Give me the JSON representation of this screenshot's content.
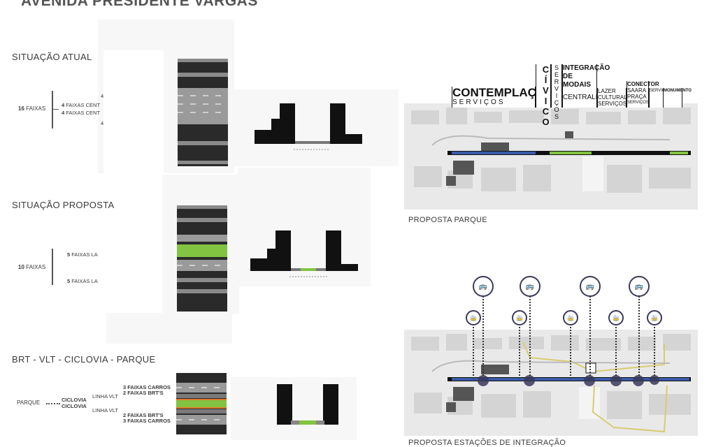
{
  "title": "AVENIDA PRESIDENTE VARGAS",
  "sections": {
    "atual": {
      "label": "SITUAÇÃO ATUAL",
      "total_num": "16",
      "total_word": "FAIXAS",
      "lane_top": "4",
      "lane_c1_num": "4",
      "lane_c1_text": "FAIXAS CENT",
      "lane_c2_num": "4",
      "lane_c2_text": "FAIXAS CENT",
      "lane_bottom": "4"
    },
    "proposta": {
      "label": "SITUAÇÃO PROPOSTA",
      "total_num": "10",
      "total_word": "FAIXAS",
      "lane_top_num": "5",
      "lane_top_text": "FAIXAS LA",
      "lane_bottom_num": "5",
      "lane_bottom_text": "FAIXAS LA"
    },
    "brt": {
      "label": "BRT - VLT - CICLOVIA - PARQUE",
      "parque": "PARQUE",
      "ciclovia1": "CICLOVIA",
      "ciclovia2": "CICLOVIA",
      "linha_vlt1": "LINHA VLT",
      "linha_vlt2": "LINHA VLT",
      "top1_num": "3",
      "top1_text": "FAIXAS CARROS",
      "top2_num": "2",
      "top2_text": "FAIXAS BRT'S",
      "bot1_num": "2",
      "bot1_text": "FAIXAS BRT'S",
      "bot2_num": "3",
      "bot2_text": "FAIXAS CARROS"
    }
  },
  "map_parque": {
    "caption": "PROPOSTA PARQUE",
    "signs": {
      "contemplacao": "CONTEMPLAÇÃO",
      "servicos1": "SERVIÇOS",
      "civico": "CÍVICO",
      "servicos2": "SERVIÇOS",
      "integracao1": "INTEGRAÇÃO",
      "integracao2": "DE MODAIS",
      "centralidade": "CENTRALIDADE",
      "lazer": "LAZER",
      "cultural": "CULTURAL",
      "servicos3": "SERVIÇOS",
      "conector": "CONECTOR",
      "saara": "SAARA",
      "praca": "PRAÇA",
      "servicos4": "SERVIÇOS",
      "servicos5": "SERVIÇOS",
      "monumento": "MONUMENTO"
    }
  },
  "map_estacoes": {
    "caption": "PROPOSTA ESTAÇÕES DE INTEGRAÇÃO"
  },
  "colors": {
    "road": "#2a2a2a",
    "lane": "#8a8a8a",
    "green": "#82c341",
    "orange": "#e0782a",
    "blue": "#3a5aa8",
    "station": "#3a3a5a"
  },
  "icons": [
    "bus-icon",
    "tram-icon",
    "bicycle-icon",
    "train-icon"
  ]
}
